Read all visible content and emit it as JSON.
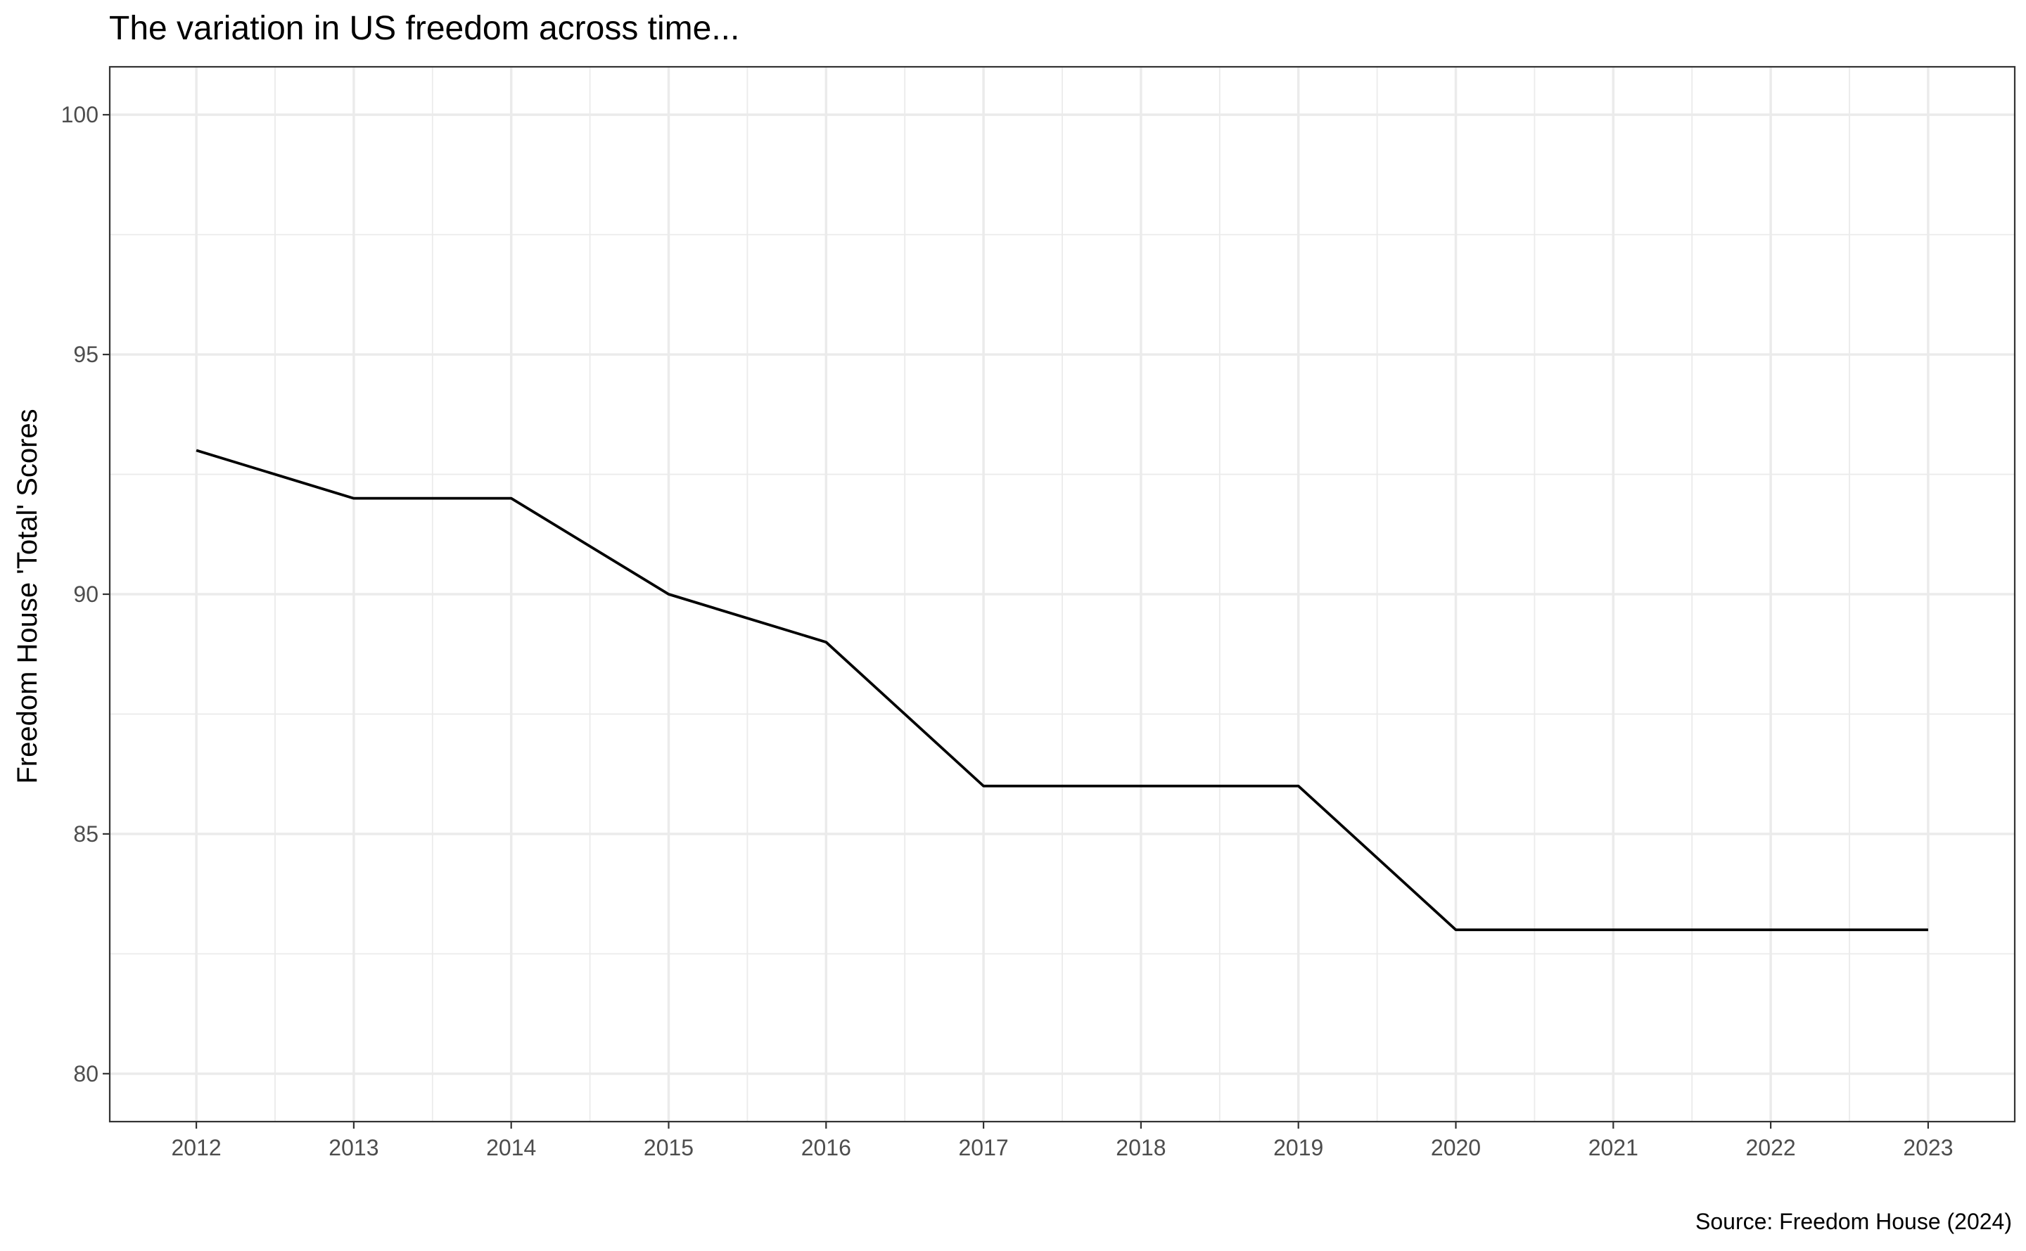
{
  "chart_data": {
    "type": "line",
    "title": "The variation in US freedom across time...",
    "xlabel": "",
    "ylabel": "Freedom House 'Total' Scores",
    "caption": "Source: Freedom House (2024)",
    "x": [
      2012,
      2013,
      2014,
      2015,
      2016,
      2017,
      2018,
      2019,
      2020,
      2021,
      2022,
      2023
    ],
    "series": [
      {
        "values": [
          93,
          92,
          92,
          90,
          89,
          86,
          86,
          86,
          83,
          83,
          83,
          83
        ],
        "color": "#000000"
      }
    ],
    "xlim": [
      2011.45,
      2023.55
    ],
    "ylim": [
      79,
      101
    ],
    "x_ticks": [
      "2012",
      "2013",
      "2014",
      "2015",
      "2016",
      "2017",
      "2018",
      "2019",
      "2020",
      "2021",
      "2022",
      "2023"
    ],
    "y_ticks": [
      "80",
      "85",
      "90",
      "95",
      "100"
    ],
    "y_tick_values": [
      80,
      85,
      90,
      95,
      100
    ],
    "grid": true,
    "legend": "none",
    "theme": "black-and-white"
  }
}
